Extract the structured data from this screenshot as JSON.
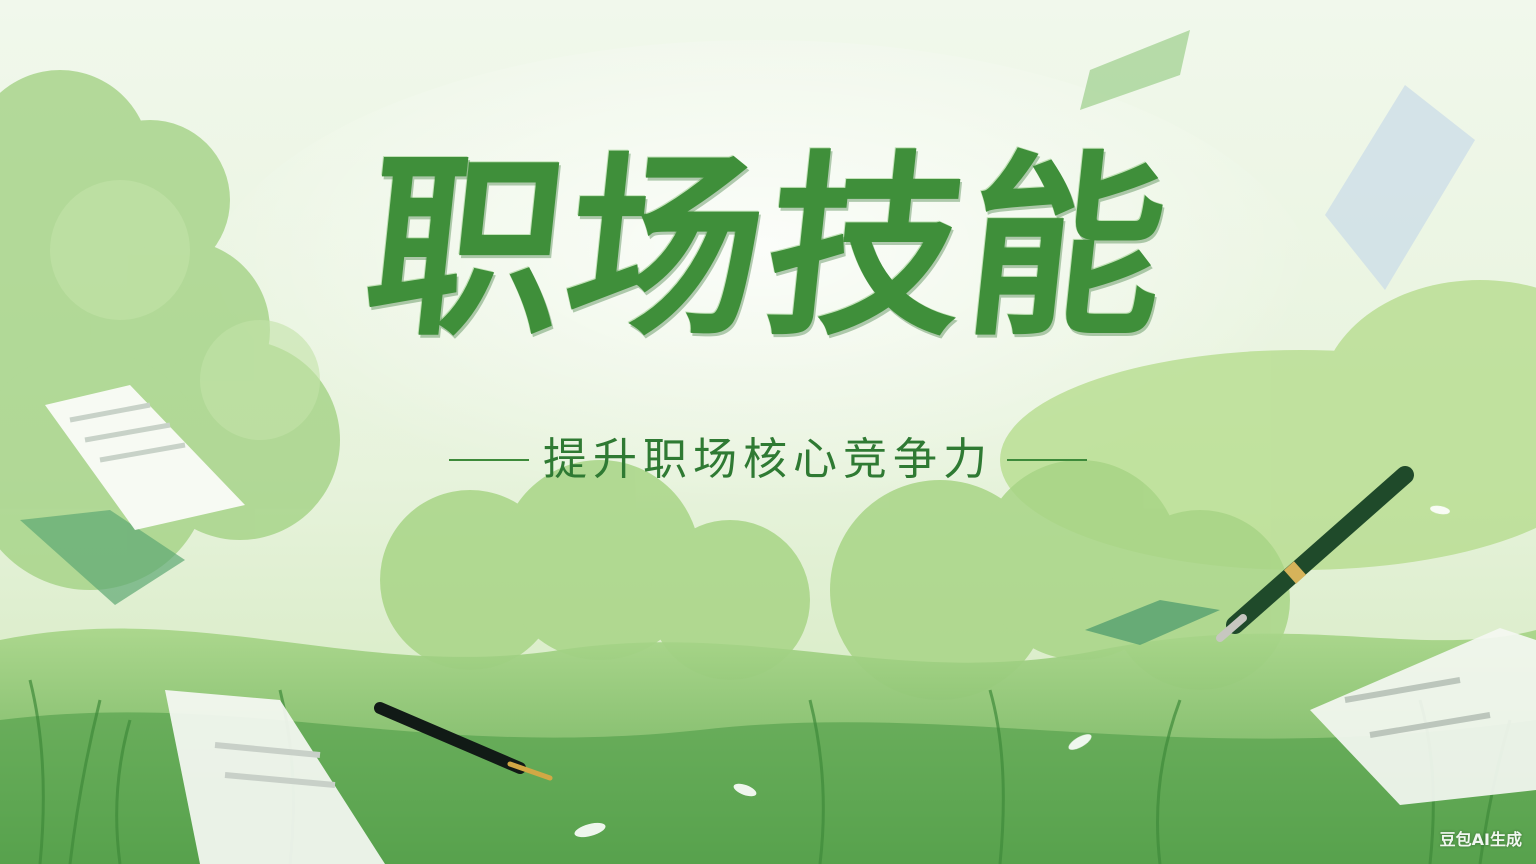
{
  "title": "职场技能",
  "subtitle": "提升职场核心竞争力",
  "watermark": "豆包AI生成",
  "colors": {
    "title_green": "#3f8f3a",
    "subtitle_green": "#2f7a33",
    "sky_light": "#eef6e6",
    "foliage_mid": "#8fca72",
    "foliage_deep": "#4f9c47"
  },
  "scene": {
    "icons": [
      "paper-sheet-icon",
      "fountain-pen-icon",
      "grass-blade-icon",
      "petal-icon"
    ]
  }
}
